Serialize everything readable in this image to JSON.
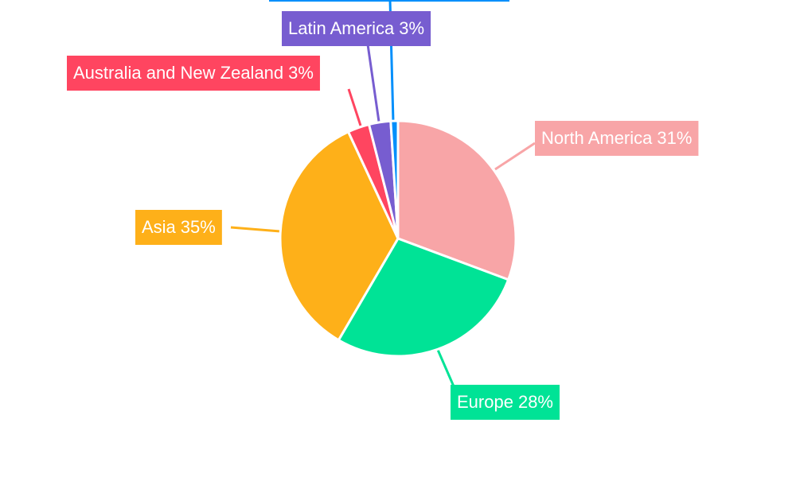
{
  "chart_data": {
    "type": "pie",
    "categories": [
      "North America",
      "Europe",
      "Asia",
      "Australia and New Zealand",
      "Latin America",
      null
    ],
    "values": [
      31,
      28,
      35,
      3,
      3,
      1
    ],
    "value_labels": [
      "31%",
      "28%",
      "35%",
      "3%",
      "3%",
      null
    ],
    "colors": [
      "#f8a5a7",
      "#00e396",
      "#feb019",
      "#ff4560",
      "#775dd0",
      "#008ffb"
    ]
  }
}
